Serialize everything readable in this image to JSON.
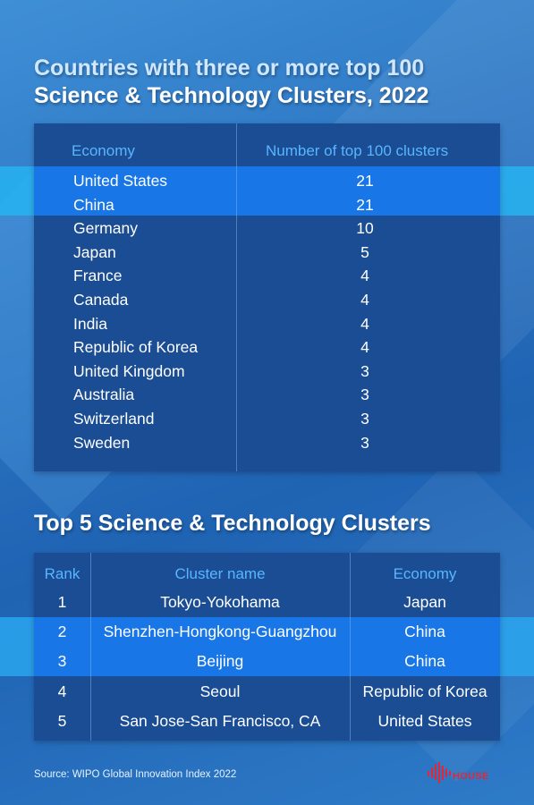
{
  "title1_line1": "Countries with three or more top 100",
  "title1_line2": "Science & Technology Clusters, 2022",
  "table1": {
    "headers": {
      "economy": "Economy",
      "count": "Number of top 100 clusters"
    },
    "rows": [
      {
        "economy": "United States",
        "count": "21"
      },
      {
        "economy": "China",
        "count": "21"
      },
      {
        "economy": "Germany",
        "count": "10"
      },
      {
        "economy": "Japan",
        "count": "5"
      },
      {
        "economy": "France",
        "count": "4"
      },
      {
        "economy": "Canada",
        "count": "4"
      },
      {
        "economy": "India",
        "count": "4"
      },
      {
        "economy": "Republic of Korea",
        "count": "4"
      },
      {
        "economy": "United Kingdom",
        "count": "3"
      },
      {
        "economy": "Australia",
        "count": "3"
      },
      {
        "economy": "Switzerland",
        "count": "3"
      },
      {
        "economy": "Sweden",
        "count": "3"
      }
    ]
  },
  "title2": "Top 5 Science & Technology Clusters",
  "table2": {
    "headers": {
      "rank": "Rank",
      "cluster": "Cluster name",
      "economy": "Economy"
    },
    "rows": [
      {
        "rank": "1",
        "cluster": "Tokyo-Yokohama",
        "economy": "Japan"
      },
      {
        "rank": "2",
        "cluster": "Shenzhen-Hongkong-Guangzhou",
        "economy": "China"
      },
      {
        "rank": "3",
        "cluster": "Beijing",
        "economy": "China"
      },
      {
        "rank": "4",
        "cluster": "Seoul",
        "economy": "Republic of Korea"
      },
      {
        "rank": "5",
        "cluster": "San Jose-San Francisco, CA",
        "economy": "United States"
      }
    ]
  },
  "source": "Source: WIPO Global Innovation Index 2022",
  "logo": {
    "icon": "house-logo-icon",
    "text": "HOUSE",
    "color": "#e0283a"
  }
}
